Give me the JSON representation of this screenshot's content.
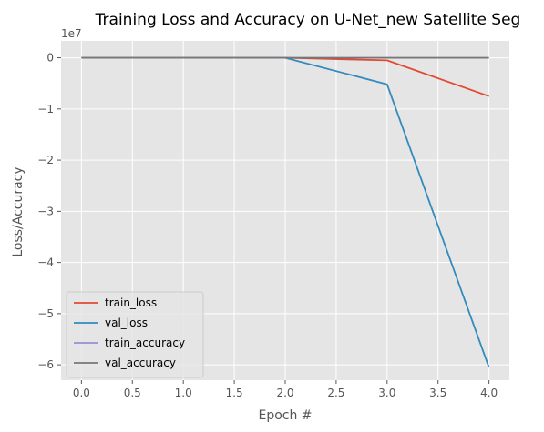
{
  "chart_data": {
    "type": "line",
    "title": "Training Loss and Accuracy on U-Net_new Satellite Seg",
    "xlabel": "Epoch #",
    "ylabel": "Loss/Accuracy",
    "y_offset_label": "1e7",
    "x": [
      0,
      1,
      2,
      3,
      4
    ],
    "xlim": [
      -0.2,
      4.2
    ],
    "ylim": [
      -6.3,
      0.33
    ],
    "x_ticks": [
      0.0,
      0.5,
      1.0,
      1.5,
      2.0,
      2.5,
      3.0,
      3.5,
      4.0
    ],
    "x_tick_labels": [
      "0.0",
      "0.5",
      "1.0",
      "1.5",
      "2.0",
      "2.5",
      "3.0",
      "3.5",
      "4.0"
    ],
    "y_ticks": [
      0,
      -1,
      -2,
      -3,
      -4,
      -5,
      -6
    ],
    "y_tick_labels": [
      "0",
      "−1",
      "−2",
      "−3",
      "−4",
      "−5",
      "−6"
    ],
    "grid": true,
    "legend_position": "lower-left",
    "series": [
      {
        "name": "train_loss",
        "color": "#e24a33",
        "values": [
          0,
          0,
          0,
          -0.05,
          -0.75
        ]
      },
      {
        "name": "val_loss",
        "color": "#348abd",
        "values": [
          0,
          0,
          0,
          -0.52,
          -6.05
        ]
      },
      {
        "name": "train_accuracy",
        "color": "#988ed5",
        "values": [
          0,
          0,
          0,
          0,
          0
        ]
      },
      {
        "name": "val_accuracy",
        "color": "#777777",
        "values": [
          0,
          0,
          0,
          0,
          0
        ]
      }
    ]
  }
}
